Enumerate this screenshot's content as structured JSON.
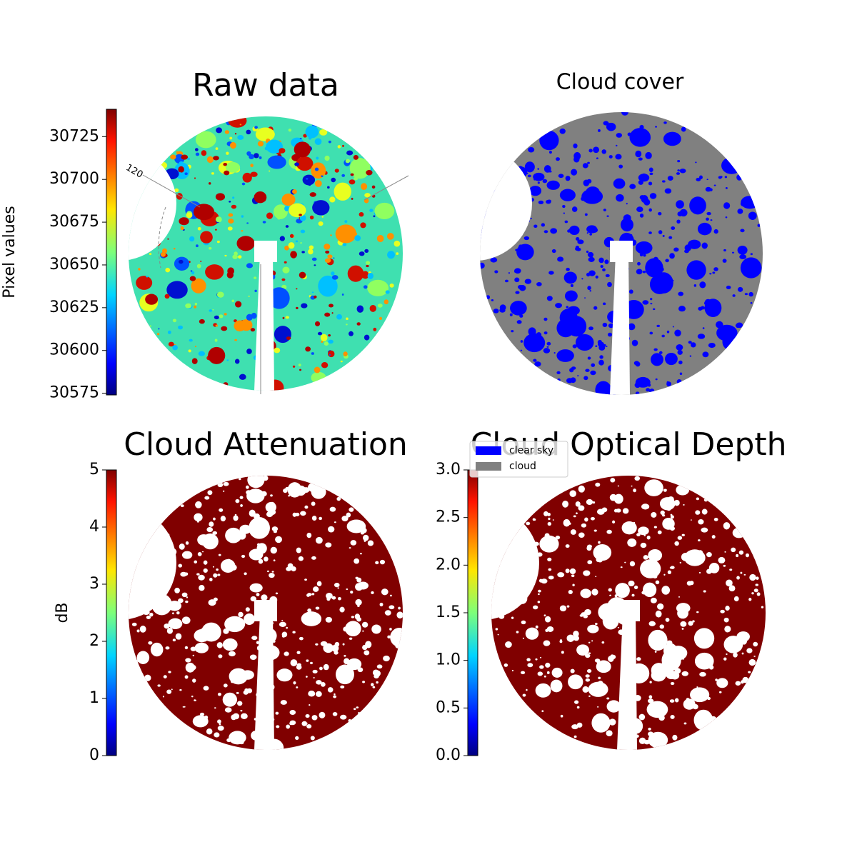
{
  "chart_data": [
    {
      "type": "image",
      "title": "Raw data",
      "annotation": "120",
      "colorbar": {
        "label": "Pixel values",
        "colormap": "jet",
        "ylim": [
          30574,
          30741
        ],
        "yticks": [
          30575,
          30600,
          30625,
          30650,
          30675,
          30700,
          30725
        ]
      }
    },
    {
      "type": "image",
      "title": "Cloud cover"
    },
    {
      "type": "image",
      "title": "Cloud Attenuation",
      "colorbar": {
        "label": "dB",
        "colormap": "jet",
        "ylim": [
          0,
          5
        ],
        "yticks": [
          0,
          1,
          2,
          3,
          4,
          5
        ]
      }
    },
    {
      "type": "image",
      "title": "Cloud Optical Depth",
      "colorbar": {
        "colormap": "jet",
        "ylim": [
          0,
          3
        ],
        "yticks": [
          {
            "value": 0,
            "label": "0.0"
          },
          0.5,
          {
            "value": 1,
            "label": "1.0"
          },
          1.5,
          {
            "value": 2,
            "label": "2.0"
          },
          2.5,
          {
            "value": 3,
            "label": "3.0"
          }
        ]
      },
      "legend": {
        "series": [
          {
            "name": "clear sky",
            "color": "#0000ff"
          },
          {
            "name": "cloud",
            "color": "#808080"
          }
        ]
      }
    }
  ]
}
